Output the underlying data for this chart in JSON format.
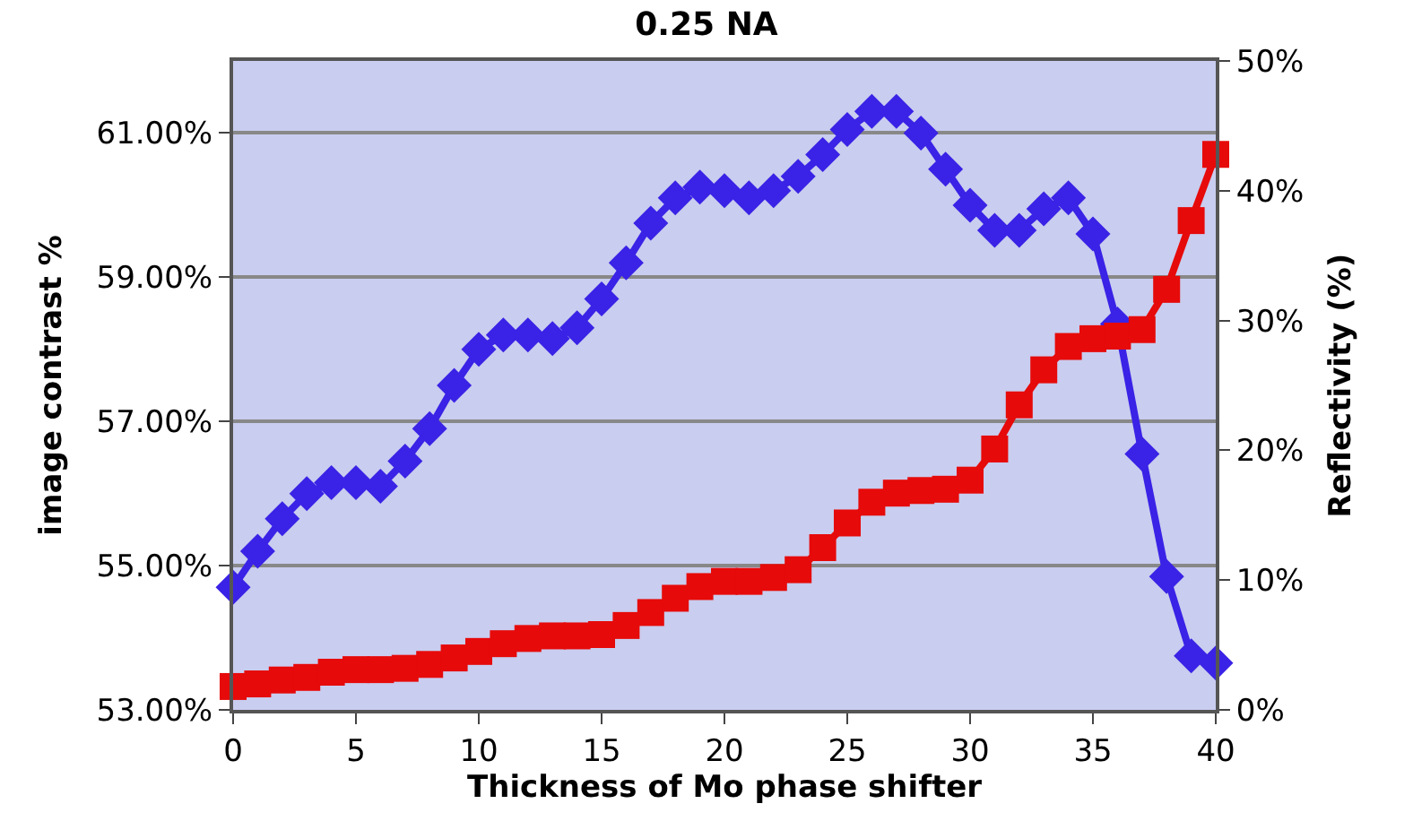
{
  "chart_data": {
    "type": "line",
    "title": "0.25 NA",
    "xlabel": "Thickness of Mo phase shifter",
    "ylabel": "image contrast %",
    "y2label": "Reflectivity (%)",
    "x": [
      0,
      1,
      2,
      3,
      4,
      5,
      6,
      7,
      8,
      9,
      10,
      11,
      12,
      13,
      14,
      15,
      16,
      17,
      18,
      19,
      20,
      21,
      22,
      23,
      24,
      25,
      26,
      27,
      28,
      29,
      30,
      31,
      32,
      33,
      34,
      35,
      36,
      37,
      38,
      39,
      40
    ],
    "series": [
      {
        "color": "#3a22e6",
        "marker": "diamond",
        "values": [
          54.7,
          55.2,
          55.65,
          56.0,
          56.15,
          56.15,
          56.1,
          56.45,
          56.9,
          57.5,
          58.0,
          58.2,
          58.2,
          58.15,
          58.3,
          58.7,
          59.2,
          59.75,
          60.1,
          60.25,
          60.2,
          60.1,
          60.2,
          60.4,
          60.7,
          61.05,
          61.3,
          61.3,
          61.0,
          60.5,
          60.0,
          59.65,
          59.65,
          59.95,
          60.1,
          59.6,
          58.35,
          56.55,
          54.85,
          53.75,
          53.65
        ]
      },
      {
        "color": "#e60a0a",
        "marker": "square",
        "axis": "y2",
        "values": [
          1.8,
          2.0,
          2.3,
          2.5,
          2.9,
          3.1,
          3.1,
          3.2,
          3.5,
          4.0,
          4.5,
          5.1,
          5.5,
          5.7,
          5.7,
          5.8,
          6.5,
          7.5,
          8.6,
          9.5,
          9.9,
          9.9,
          10.2,
          10.8,
          12.5,
          14.4,
          16.0,
          16.7,
          16.9,
          17.0,
          17.7,
          20.1,
          23.5,
          26.2,
          28.0,
          28.6,
          28.8,
          29.3,
          32.4,
          37.7,
          42.8
        ]
      }
    ],
    "xlim": [
      0,
      40
    ],
    "xticks": [
      0,
      5,
      10,
      15,
      20,
      25,
      30,
      35,
      40
    ],
    "ylim": [
      53,
      62
    ],
    "yticks": [
      {
        "value": 53,
        "label": "53.00%"
      },
      {
        "value": 55,
        "label": "55.00%"
      },
      {
        "value": 57,
        "label": "57.00%"
      },
      {
        "value": 59,
        "label": "59.00%"
      },
      {
        "value": 61,
        "label": "61.00%"
      }
    ],
    "y2lim": [
      0,
      50
    ],
    "y2ticks": [
      {
        "value": 0,
        "label": "0%"
      },
      {
        "value": 10,
        "label": "10%"
      },
      {
        "value": 20,
        "label": "20%"
      },
      {
        "value": 30,
        "label": "30%"
      },
      {
        "value": 40,
        "label": "40%"
      },
      {
        "value": 50,
        "label": "50%"
      }
    ],
    "grid": "y",
    "legend": false
  }
}
